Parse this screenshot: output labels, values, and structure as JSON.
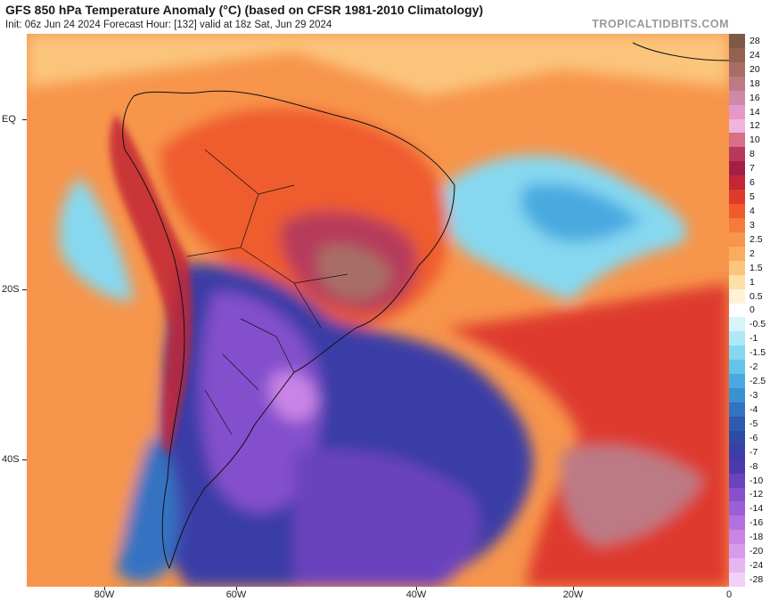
{
  "header": {
    "title": "GFS 850 hPa Temperature Anomaly (°C) (based on CFSR 1981-2010 Climatology)",
    "subtitle": "Init: 06z Jun 24 2024   Forecast Hour: [132]   valid at 18z Sat, Jun 29 2024",
    "brand": "TROPICALTIDBITS.COM"
  },
  "map": {
    "lat_labels": [
      "EQ",
      "20S",
      "40S"
    ],
    "lon_labels": [
      "80W",
      "60W",
      "40W",
      "20W",
      "0"
    ]
  },
  "colorbar": {
    "levels": [
      "28",
      "24",
      "20",
      "18",
      "16",
      "14",
      "12",
      "10",
      "8",
      "7",
      "6",
      "5",
      "4",
      "3",
      "2.5",
      "2",
      "1.5",
      "1",
      "0.5",
      "0",
      "-0.5",
      "-1",
      "-1.5",
      "-2",
      "-2.5",
      "-3",
      "-4",
      "-5",
      "-6",
      "-7",
      "-8",
      "-10",
      "-12",
      "-14",
      "-16",
      "-18",
      "-20",
      "-24",
      "-28"
    ],
    "colors": [
      "#7d5a46",
      "#93614f",
      "#a86e66",
      "#bc7a84",
      "#d088a8",
      "#e699c8",
      "#f1b4dd",
      "#d76f86",
      "#b73a5c",
      "#a51e43",
      "#c32634",
      "#de3b2d",
      "#ef5b2e",
      "#f57a3b",
      "#f7954b",
      "#f9ad5f",
      "#fbc57b",
      "#fde0a6",
      "#fff1d8",
      "#ffffff",
      "#d5f4fb",
      "#aee8f6",
      "#86d8f0",
      "#63c4ea",
      "#4aaae0",
      "#3b8fd3",
      "#3473c2",
      "#2e5ab0",
      "#2d4aa6",
      "#3a3ea6",
      "#4b3aac",
      "#6a43bd",
      "#8450cc",
      "#9d5fd8",
      "#b570e0",
      "#c984e6",
      "#d99bec",
      "#e6b6f2",
      "#f1d1f8"
    ]
  }
}
